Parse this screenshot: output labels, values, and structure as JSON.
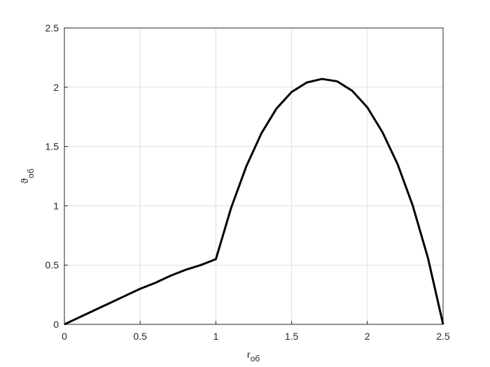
{
  "chart_data": {
    "type": "line",
    "xlabel": {
      "main": "r",
      "sub": "об"
    },
    "ylabel": {
      "main": "ϑ",
      "sub": "об"
    },
    "x": [
      0,
      0.1,
      0.2,
      0.3,
      0.4,
      0.5,
      0.6,
      0.7,
      0.8,
      0.9,
      1.0,
      1.1,
      1.2,
      1.3,
      1.4,
      1.5,
      1.6,
      1.7,
      1.8,
      1.9,
      2.0,
      2.1,
      2.2,
      2.3,
      2.4,
      2.5
    ],
    "series": [
      {
        "color": "#000000",
        "values": [
          0,
          0.06,
          0.12,
          0.18,
          0.24,
          0.3,
          0.35,
          0.41,
          0.46,
          0.5,
          0.55,
          0.98,
          1.33,
          1.61,
          1.82,
          1.96,
          2.04,
          2.07,
          2.05,
          1.97,
          1.83,
          1.62,
          1.35,
          1.0,
          0.56,
          0
        ]
      }
    ],
    "xlim": [
      0,
      2.5
    ],
    "ylim": [
      0,
      2.5
    ],
    "xticks": [
      0,
      0.5,
      1,
      1.5,
      2,
      2.5
    ],
    "yticks": [
      0,
      0.5,
      1,
      1.5,
      2,
      2.5
    ],
    "grid": true
  }
}
